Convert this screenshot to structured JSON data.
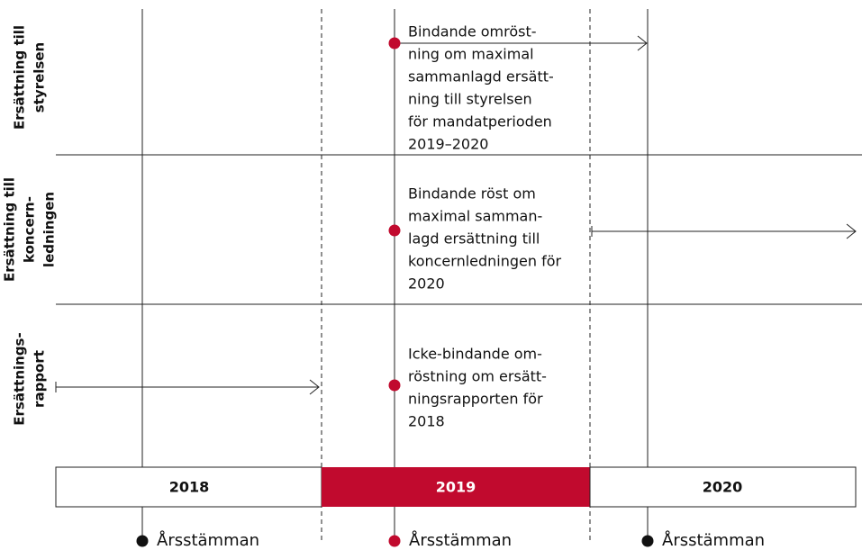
{
  "rows": [
    {
      "label": [
        "Ersättning till",
        "styrelsen"
      ],
      "description": [
        "Bindande omröst-",
        "ning om maximal",
        "sammanlagd ersätt-",
        "ning till styrelsen",
        "för mandatperioden",
        "2019–2020"
      ]
    },
    {
      "label": [
        "Ersättning till",
        "koncern-",
        "ledningen"
      ],
      "description": [
        "Bindande röst om",
        "maximal samman-",
        "lagd ersättning till",
        "koncernledningen för",
        "2020"
      ]
    },
    {
      "label": [
        "Ersättnings-",
        "rapport"
      ],
      "description": [
        "Icke-bindande om-",
        "röstning om ersätt-",
        "ningsrapporten för",
        "2018"
      ]
    }
  ],
  "years": [
    "2018",
    "2019",
    "2020"
  ],
  "meetings": [
    "Årsstämman",
    "Årsstämman",
    "Årsstämman"
  ]
}
